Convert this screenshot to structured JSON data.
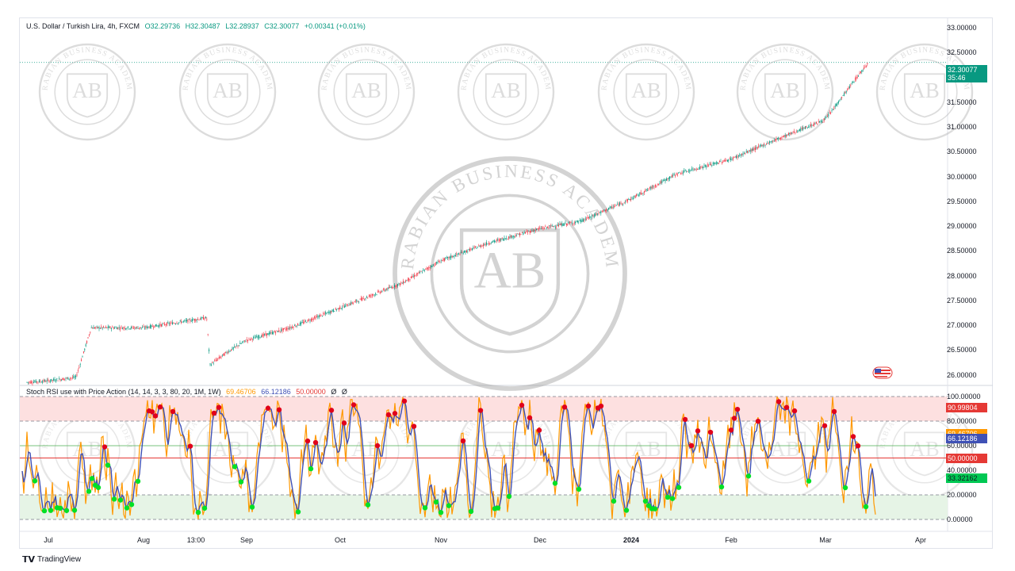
{
  "header": {
    "symbol": "U.S. Dollar / Turkish Lira, 4h, FXCM",
    "open": "O32.29736",
    "high": "H32.30487",
    "low": "L32.28937",
    "close": "C32.30077",
    "change": "+0.00341 (+0.01%)"
  },
  "indicator": {
    "name": "Stoch RSI use with Price Action (14, 14, 3, 3, 80, 20, 1M, 1W)",
    "k": "69.46706",
    "d": "66.12186",
    "level": "50.00000",
    "e1": "Ø",
    "e2": "Ø"
  },
  "price_axis": [
    "33.00000",
    "32.50000",
    "32.00000",
    "31.50000",
    "31.00000",
    "30.50000",
    "30.00000",
    "29.50000",
    "29.00000",
    "28.50000",
    "28.00000",
    "27.50000",
    "27.00000",
    "26.50000",
    "26.00000"
  ],
  "price_badge": {
    "value": "32.30077",
    "countdown": "35:46"
  },
  "osc_axis": [
    "100.00000",
    "80.00000",
    "60.00000",
    "40.00000",
    "20.00000",
    "0.00000"
  ],
  "osc_badges": [
    "90.99804",
    "69.46706",
    "66.12186",
    "50.00000",
    "33.32162"
  ],
  "time_axis": [
    {
      "label": "Jul",
      "bold": false
    },
    {
      "label": "Aug",
      "bold": false
    },
    {
      "label": "13:00",
      "bold": false
    },
    {
      "label": "Sep",
      "bold": false
    },
    {
      "label": "Oct",
      "bold": false
    },
    {
      "label": "Nov",
      "bold": false
    },
    {
      "label": "Dec",
      "bold": false
    },
    {
      "label": "2024",
      "bold": true
    },
    {
      "label": "Feb",
      "bold": false
    },
    {
      "label": "Mar",
      "bold": false
    },
    {
      "label": "Apr",
      "bold": false
    }
  ],
  "brand": "TradingView",
  "watermark": {
    "text": "ARABIAN BUSINESS ACADEMY",
    "monogram": "AB"
  },
  "colors": {
    "up": "#089981",
    "down": "#f23645",
    "k": "#ff9800",
    "d": "#3f51b5",
    "overbought": "#fde0e0",
    "oversold": "#e6f4e6",
    "level": "#e53935",
    "mid": "#4caf50",
    "badge_up": "#089981",
    "badge_red": "#e53935",
    "badge_orange": "#ff9800",
    "badge_blue": "#3f51b5",
    "badge_green": "#00c853"
  },
  "chart_data": [
    {
      "type": "candlestick",
      "title": "U.S. Dollar / Turkish Lira, 4h, FXCM",
      "x_labels": [
        "Jul",
        "Aug",
        "Sep",
        "Oct",
        "Nov",
        "Dec",
        "2024",
        "Feb",
        "Mar",
        "Apr"
      ],
      "x": [
        "2023-06-22",
        "2023-07-01",
        "2023-07-10",
        "2023-07-15",
        "2023-08-01",
        "2023-08-20",
        "2023-08-21",
        "2023-08-26",
        "2023-09-01",
        "2023-09-15",
        "2023-10-01",
        "2023-10-20",
        "2023-11-01",
        "2023-11-15",
        "2023-12-01",
        "2023-12-15",
        "2024-01-01",
        "2024-01-15",
        "2024-02-01",
        "2024-02-15",
        "2024-03-01",
        "2024-03-10",
        "2024-03-15"
      ],
      "close": [
        25.85,
        25.88,
        25.95,
        26.95,
        26.95,
        27.15,
        26.2,
        26.45,
        26.7,
        26.95,
        27.35,
        27.85,
        28.3,
        28.65,
        28.95,
        29.1,
        29.55,
        30.05,
        30.35,
        30.75,
        31.15,
        31.9,
        32.3007
      ],
      "ylim": [
        25.85,
        33.0
      ],
      "last": 32.30077
    },
    {
      "type": "line",
      "title": "Stoch RSI use with Price Action (14, 14, 3, 3, 80, 20, 1M, 1W)",
      "ylim": [
        0,
        100
      ],
      "levels": [
        100,
        80,
        50,
        20,
        0
      ],
      "series": [
        {
          "name": "K",
          "last": 69.46706
        },
        {
          "name": "D",
          "last": 66.12186
        }
      ]
    }
  ]
}
